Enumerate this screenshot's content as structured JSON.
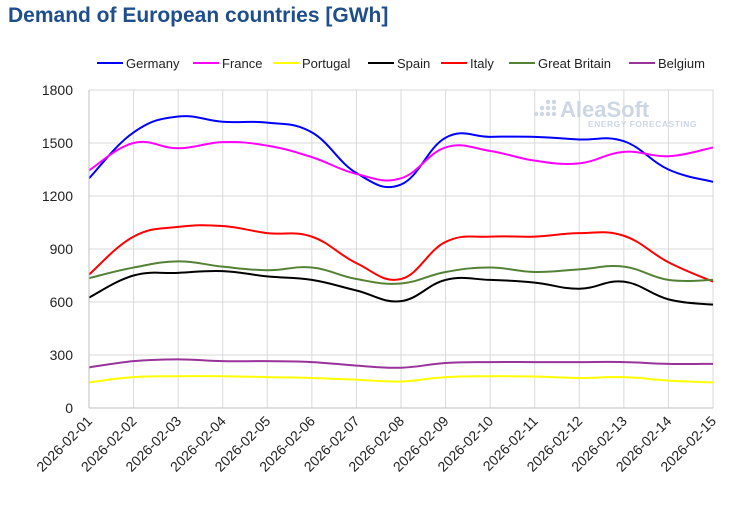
{
  "chart_data": {
    "type": "line",
    "title": "Demand of European countries [GWh]",
    "xlabel": "",
    "ylabel": "",
    "ylim": [
      0,
      1800
    ],
    "yticks": [
      0,
      300,
      600,
      900,
      1200,
      1500,
      1800
    ],
    "grid": true,
    "legend_position": "top",
    "categories": [
      "2026-02-01",
      "2026-02-02",
      "2026-02-03",
      "2026-02-04",
      "2026-02-05",
      "2026-02-06",
      "2026-02-07",
      "2026-02-08",
      "2026-02-09",
      "2026-02-10",
      "2026-02-11",
      "2026-02-12",
      "2026-02-13",
      "2026-02-14",
      "2026-02-15"
    ],
    "series": [
      {
        "name": "Germany",
        "color": "#0000ff",
        "values": [
          1300,
          1560,
          1650,
          1620,
          1615,
          1560,
          1330,
          1265,
          1530,
          1535,
          1535,
          1520,
          1510,
          1350,
          1280
        ]
      },
      {
        "name": "France",
        "color": "#ff00ff",
        "values": [
          1345,
          1500,
          1470,
          1505,
          1485,
          1420,
          1325,
          1300,
          1475,
          1455,
          1400,
          1385,
          1450,
          1425,
          1475
        ]
      },
      {
        "name": "Portugal",
        "color": "#ffff00",
        "values": [
          145,
          175,
          180,
          180,
          175,
          170,
          160,
          150,
          175,
          180,
          178,
          170,
          175,
          155,
          145
        ]
      },
      {
        "name": "Spain",
        "color": "#000000",
        "values": [
          625,
          750,
          765,
          775,
          745,
          725,
          665,
          605,
          725,
          725,
          710,
          675,
          715,
          615,
          585
        ]
      },
      {
        "name": "Italy",
        "color": "#ff0000",
        "values": [
          755,
          970,
          1025,
          1030,
          990,
          970,
          820,
          730,
          940,
          970,
          970,
          990,
          975,
          825,
          715
        ]
      },
      {
        "name": "Great Britain",
        "color": "#548235",
        "values": [
          735,
          795,
          830,
          800,
          780,
          795,
          730,
          705,
          770,
          795,
          770,
          785,
          800,
          725,
          725
        ]
      },
      {
        "name": "Belgium",
        "color": "#993399",
        "values": [
          230,
          265,
          275,
          265,
          265,
          260,
          240,
          228,
          255,
          260,
          260,
          260,
          260,
          250,
          250
        ]
      }
    ]
  },
  "watermark": {
    "brand": "AleaSoft",
    "tagline": "ENERGY FORECASTING"
  }
}
